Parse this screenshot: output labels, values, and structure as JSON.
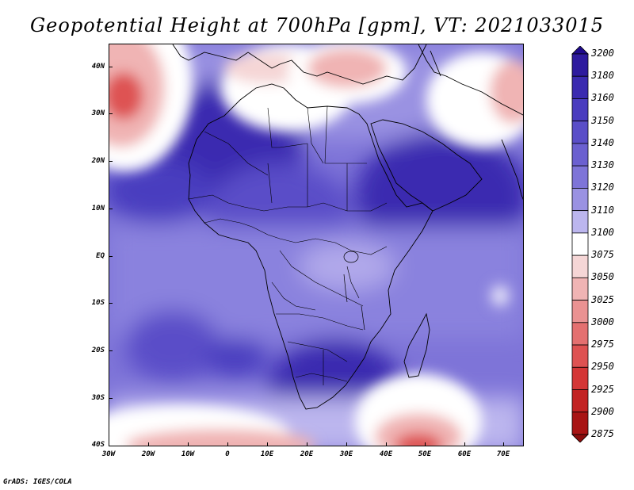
{
  "title": "Geopotential Height at 700hPa [gpm], VT: 2021033015",
  "footer": "GrADS: IGES/COLA",
  "lat_labels": [
    "40N",
    "30N",
    "20N",
    "10N",
    "EQ",
    "10S",
    "20S",
    "30S",
    "40S"
  ],
  "lon_labels": [
    "30W",
    "20W",
    "10W",
    "0",
    "10E",
    "20E",
    "30E",
    "40E",
    "50E",
    "60E",
    "70E"
  ],
  "colorbar": {
    "levels": [
      "3200",
      "3180",
      "3160",
      "3150",
      "3140",
      "3130",
      "3120",
      "3110",
      "3100",
      "3075",
      "3050",
      "3025",
      "3000",
      "2975",
      "2950",
      "2925",
      "2900",
      "2875"
    ],
    "colors": [
      "#1e0a8c",
      "#2d1a9e",
      "#3a2ab0",
      "#4a3cbf",
      "#5a4ec8",
      "#6b60d0",
      "#7e74d8",
      "#9a92e2",
      "#bcb6ee",
      "#ffffff",
      "#f5d6d6",
      "#f0b4b4",
      "#ea9292",
      "#e47070",
      "#de5252",
      "#d43636",
      "#c22222",
      "#a81414",
      "#8a0c0c"
    ]
  }
}
